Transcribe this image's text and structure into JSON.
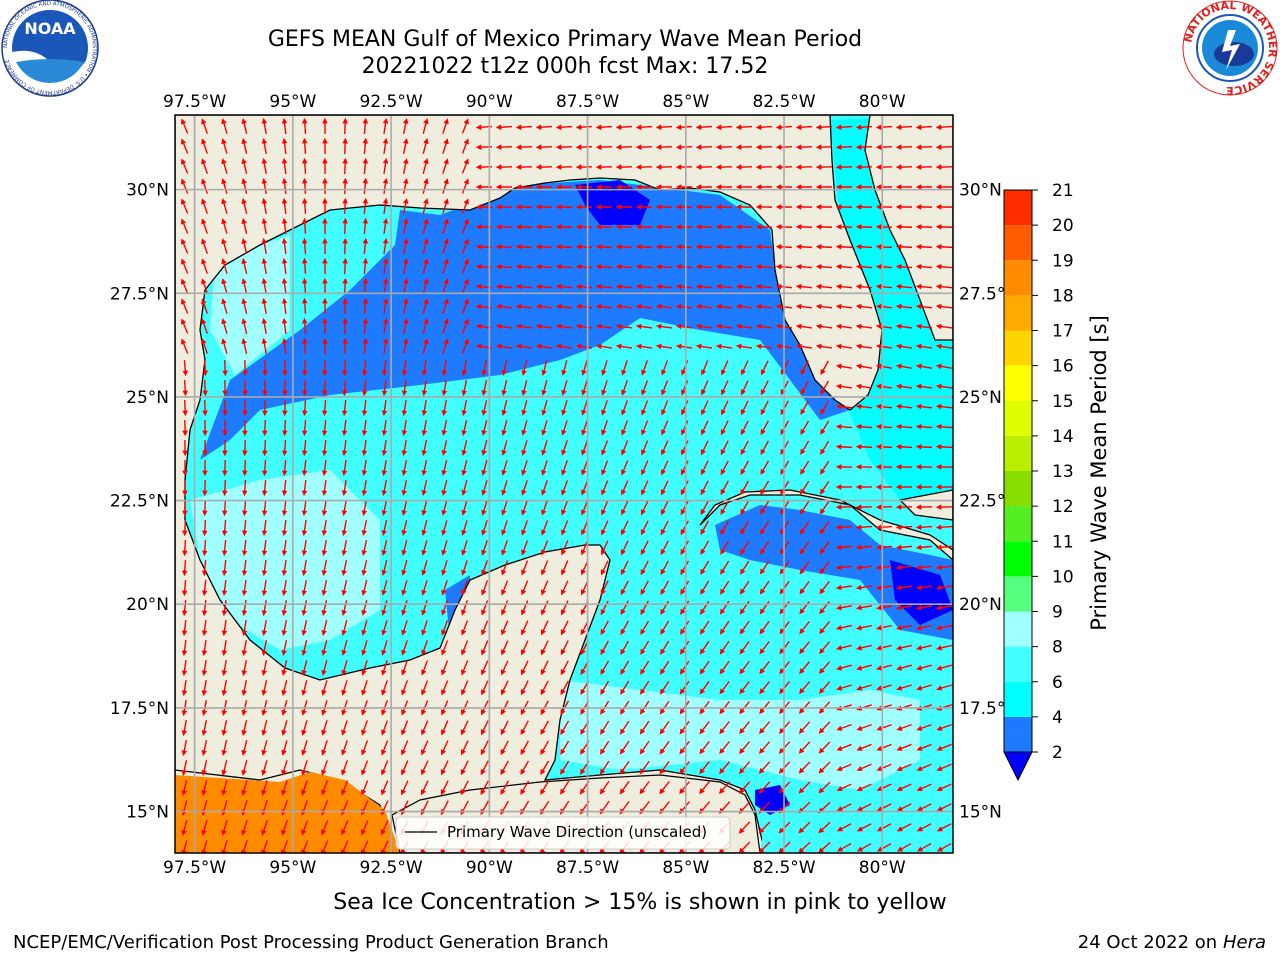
{
  "title_line1": "GEFS MEAN Gulf of Mexico Primary Wave Mean Period",
  "title_line2": "20221022 t12z 000h fcst   Max: 17.52",
  "logos": {
    "left": {
      "name": "noaa-logo",
      "text": "NOAA",
      "ring_text": "NATIONAL OCEANIC AND ATMOSPHERIC ADMINISTRATION • U.S. DEPARTMENT OF COMMERCE"
    },
    "right": {
      "name": "nws-logo",
      "ring_text": "NATIONAL WEATHER SERVICE"
    }
  },
  "map": {
    "lon_ticks": [
      "97.5°W",
      "95°W",
      "92.5°W",
      "90°W",
      "87.5°W",
      "85°W",
      "82.5°W",
      "80°W"
    ],
    "lat_ticks": [
      "15°N",
      "17.5°N",
      "20°N",
      "22.5°N",
      "25°N",
      "27.5°N",
      "30°N"
    ],
    "lon_values": [
      -97.5,
      -95,
      -92.5,
      -90,
      -87.5,
      -85,
      -82.5,
      -80
    ],
    "lat_values": [
      15,
      17.5,
      20,
      22.5,
      25,
      27.5,
      30
    ],
    "extent": {
      "lon": [
        -98,
        -78.2
      ],
      "lat": [
        14,
        31.8
      ]
    },
    "grid": true,
    "legend_label": "Primary Wave Direction (unscaled)",
    "legend_position": "bottom-center",
    "land_color": "#efedde",
    "coast_color": "#000000",
    "arrow_color": "#ff0000"
  },
  "colorbar": {
    "label": "Primary Wave Mean Period [s]",
    "ticks": [
      "2",
      "4",
      "6",
      "8",
      "9",
      "10",
      "11",
      "12",
      "13",
      "14",
      "15",
      "16",
      "17",
      "18",
      "19",
      "20",
      "21"
    ],
    "colors": [
      "#1e7bff",
      "#00ffff",
      "#41ffff",
      "#a0ffff",
      "#55ff7f",
      "#00ff00",
      "#55ee22",
      "#88dd00",
      "#bbee00",
      "#ddff00",
      "#ffff00",
      "#ffd500",
      "#ffaa00",
      "#ff8c00",
      "#ff5c00",
      "#ff2d00",
      "#ff0000"
    ],
    "under_color": "#0000ff"
  },
  "caption": "Sea Ice Concentration > 15% is shown in pink to yellow",
  "credit": "NCEP/EMC/Verification Post Processing Product Generation Branch",
  "stamp_date": "24 Oct 2022 on ",
  "stamp_host": "Hera"
}
